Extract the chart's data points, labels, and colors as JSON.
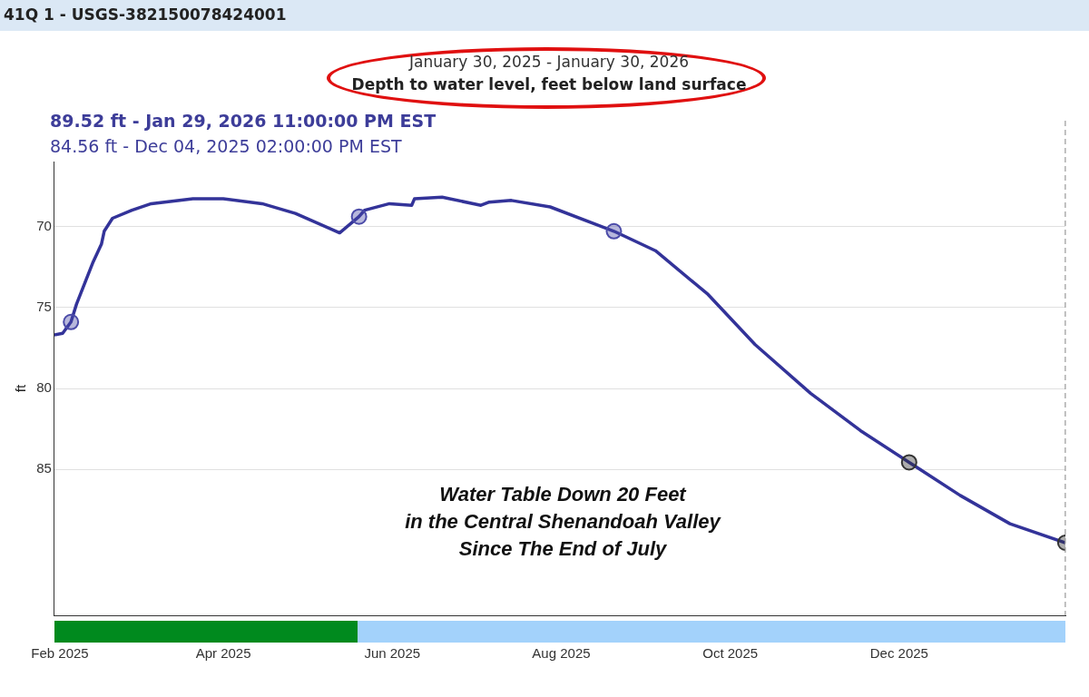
{
  "chart_data": {
    "type": "line",
    "title": "41Q 1 - USGS-382150078424001",
    "subtitle": "January 30, 2025 - January 30, 2026",
    "ylabel": "ft",
    "annotations": [
      "89.52 ft - Jan 29, 2026 11:00:00 PM EST",
      "84.56 ft - Dec 04, 2025 02:00:00 PM EST",
      "Depth to water level, feet below land surface",
      "Water Table Down 20 Feet\nin the Central Shenandoah Valley\nSince The End of July"
    ],
    "series": [
      {
        "color": "#333399",
        "marker": "none",
        "x": [
          "2025-01-30",
          "2025-02-02",
          "2025-02-05",
          "2025-02-07",
          "2025-02-10",
          "2025-02-13",
          "2025-02-16",
          "2025-02-17",
          "2025-02-20",
          "2025-02-27",
          "2025-03-06",
          "2025-03-21",
          "2025-04-01",
          "2025-04-15",
          "2025-04-27",
          "2025-05-13",
          "2025-05-20",
          "2025-05-22",
          "2025-05-31",
          "2025-06-08",
          "2025-06-09",
          "2025-06-19",
          "2025-07-03",
          "2025-07-06",
          "2025-07-14",
          "2025-07-28",
          "2025-08-20",
          "2025-09-04",
          "2025-09-23",
          "2025-10-10",
          "2025-10-30",
          "2025-11-17",
          "2025-12-04T14:00",
          "2025-12-23",
          "2026-01-10",
          "2026-01-29T23:00"
        ],
        "values": [
          76.7,
          76.6,
          75.9,
          74.8,
          73.5,
          72.2,
          71.1,
          70.3,
          69.5,
          69.0,
          68.6,
          68.3,
          68.3,
          68.6,
          69.2,
          70.4,
          69.4,
          69.0,
          68.6,
          68.7,
          68.3,
          68.2,
          68.7,
          68.5,
          68.4,
          68.8,
          70.3,
          71.5,
          74.2,
          77.3,
          80.3,
          82.6,
          84.56,
          86.6,
          88.35,
          89.52
        ]
      },
      {
        "type": "scatter",
        "color": "#4b4ba8",
        "marker": "circle",
        "x": [
          "2025-02-05",
          "2025-05-20",
          "2025-08-20"
        ],
        "values": [
          75.9,
          69.4,
          70.3
        ]
      },
      {
        "type": "scatter",
        "color": "#333333",
        "marker": "circle",
        "x": [
          "2025-12-04T14:00",
          "2026-01-29T23:00"
        ],
        "values": [
          84.56,
          89.52
        ]
      }
    ],
    "xlim": [
      "2025-01-30",
      "2026-01-30"
    ],
    "xticks": [
      {
        "value": "2025-02-01",
        "label": "Feb 2025"
      },
      {
        "value": "2025-04-01",
        "label": "Apr 2025"
      },
      {
        "value": "2025-06-01",
        "label": "Jun 2025"
      },
      {
        "value": "2025-08-01",
        "label": "Aug 2025"
      },
      {
        "value": "2025-10-01",
        "label": "Oct 2025"
      },
      {
        "value": "2025-12-01",
        "label": "Dec 2025"
      }
    ],
    "ylim": [
      94,
      66
    ],
    "yticks": [
      70,
      75,
      80,
      85
    ],
    "grid": "y",
    "ref_lines": [
      {
        "axis": "x",
        "value": "2026-01-29T23:00",
        "color": "#999999",
        "line_style": "dashed"
      }
    ]
  }
}
